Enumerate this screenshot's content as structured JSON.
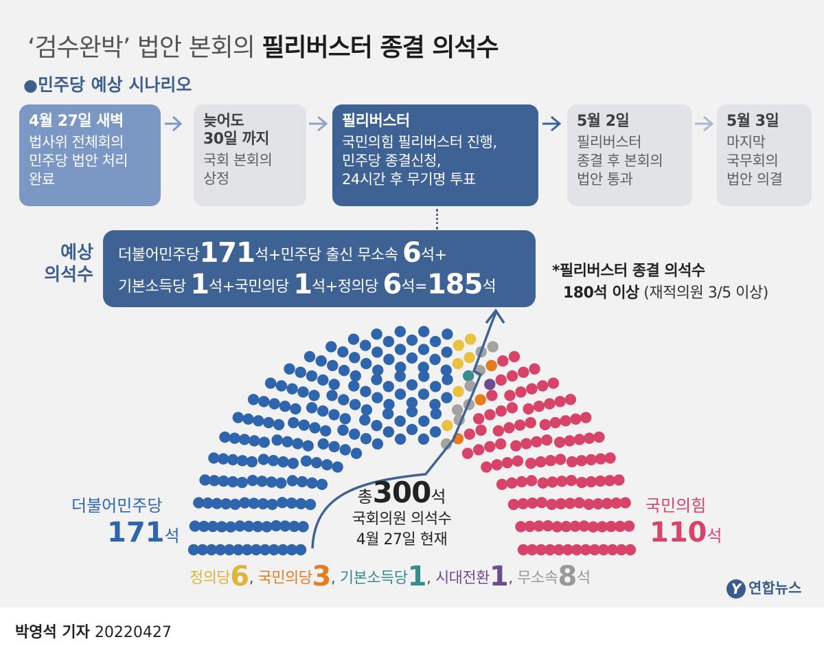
{
  "title": {
    "part1": "‘검수완박’ 법안 본회의",
    "part2": "필리버스터 종결 의석수"
  },
  "subtitle": {
    "bullet": "●",
    "text": "민주당 예상 시나리오"
  },
  "scenario": [
    {
      "heading": "4월 27일 새벽",
      "body": "법사위 전체회의\n민주당 법안 처리\n완료"
    },
    {
      "heading": "늦어도\n30일 까지",
      "body": "국회 본회의\n상정"
    },
    {
      "heading": "필리버스터",
      "body": "국민의힘 필리버스터 진행,\n민주당 종결신청,\n24시간 후 무기명 투표"
    },
    {
      "heading": "5월 2일",
      "body": "필리버스터\n종결 후 본회의\n법안 통과"
    },
    {
      "heading": "5월 3일",
      "body": "마지막\n국무회의\n법안 의결"
    }
  ],
  "estimate": {
    "label": "예상\n의석수",
    "line1": [
      {
        "t": "더불어민주당",
        "n": "171",
        "u": "석+민주당 출신 무소속"
      },
      {
        "t": "",
        "n": "6",
        "u": "석+"
      }
    ],
    "line2": [
      {
        "t": "기본소득당",
        "n": "1",
        "u": "석+국민의당"
      },
      {
        "t": "",
        "n": "1",
        "u": "석+정의당"
      },
      {
        "t": "",
        "n": "6",
        "u": "석="
      },
      {
        "t": "",
        "n": "185",
        "u": "석"
      }
    ]
  },
  "note": {
    "line1": "*필리버스터 종결 의석수",
    "bold": "180석 이상",
    "rest": " (재적의원 3/5 이상)"
  },
  "total": {
    "prefix": "총",
    "number": "300",
    "unit": "석",
    "line2": "국회의원 의석수",
    "line3": "4월 27일 현재"
  },
  "parties": {
    "democratic": {
      "name": "더불어민주당",
      "seats": "171",
      "unit": "석",
      "color": "#2f65ad"
    },
    "ppp": {
      "name": "국민의힘",
      "seats": "110",
      "unit": "석",
      "color": "#d8436a"
    }
  },
  "minor": [
    {
      "name": "정의당",
      "seats": "6",
      "sep": ", ",
      "cls": "c-jus"
    },
    {
      "name": "국민의당",
      "seats": "3",
      "sep": ", ",
      "cls": "c-peo"
    },
    {
      "name": "기본소득당",
      "seats": "1",
      "sep": ", ",
      "cls": "c-bas"
    },
    {
      "name": "시대전환",
      "seats": "1",
      "sep": ", ",
      "cls": "c-era"
    },
    {
      "name": "무소속",
      "seats": "8",
      "sep": "",
      "cls": "c-ind",
      "unit": "석"
    }
  ],
  "seat_groups": [
    {
      "party": "더불어민주당",
      "count": 171,
      "color": "#2f65ad"
    },
    {
      "party": "정의당",
      "count": 6,
      "color": "#e9c23f"
    },
    {
      "party": "기본소득당",
      "count": 1,
      "color": "#3a8b8c"
    },
    {
      "party": "무소속",
      "count": 8,
      "color": "#a3a3a3"
    },
    {
      "party": "국민의당",
      "count": 3,
      "color": "#e57d20"
    },
    {
      "party": "시대전환",
      "count": 1,
      "color": "#6d4c8f"
    },
    {
      "party": "국민의힘",
      "count": 110,
      "color": "#d8436a"
    }
  ],
  "arrow_color": "#3f6294",
  "step_arrow_colors": [
    "#7b98c5",
    "#8fa3c4",
    "#3f6294",
    "#a9b7cf"
  ],
  "logo": {
    "mark": "Y",
    "text": "연합뉴스"
  },
  "credit": {
    "name": "박영석 기자",
    "date": "20220427"
  }
}
